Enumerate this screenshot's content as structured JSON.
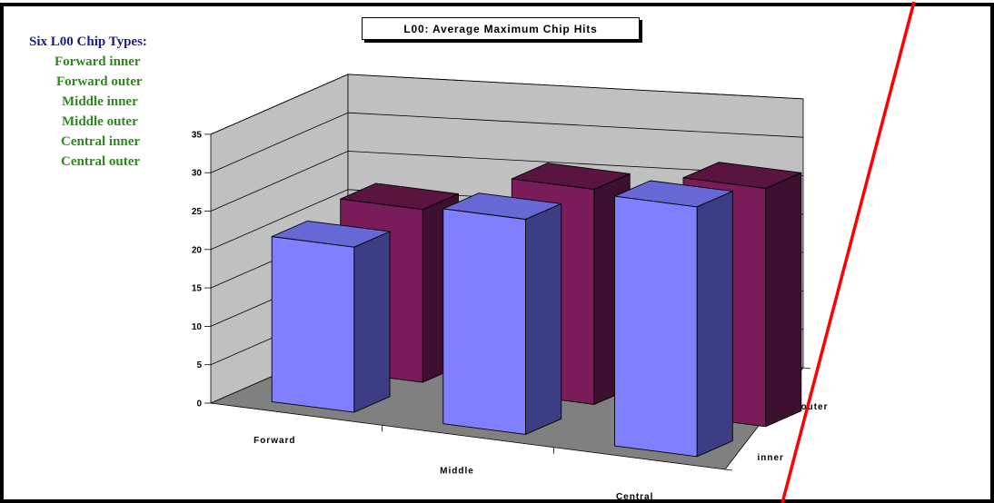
{
  "side_panel": {
    "heading": "Six L00 Chip Types:",
    "items": [
      "Forward inner",
      "Forward outer",
      "Middle inner",
      "Middle outer",
      "Central inner",
      "Central outer"
    ]
  },
  "chart_data": {
    "type": "bar",
    "subtype": "3d-column",
    "title": "L00: Average Maximum Chip Hits",
    "categories": [
      "Forward",
      "Middle",
      "Central"
    ],
    "series": [
      {
        "name": "inner",
        "values": [
          21.5,
          28,
          32.5
        ]
      },
      {
        "name": "outer",
        "values": [
          22.5,
          28,
          31
        ]
      }
    ],
    "depth_labels": [
      "inner",
      "outer"
    ],
    "ylim": [
      0,
      35
    ],
    "yticks": [
      0,
      5,
      10,
      15,
      20,
      25,
      30,
      35
    ],
    "grid": true,
    "legend": "none",
    "colors": {
      "inner": "#8080ff",
      "inner_side": "#3d3d85",
      "inner_top": "#6767d6",
      "outer": "#7a1c5a",
      "outer_side": "#3e1030",
      "outer_top": "#5a1440",
      "back_wall": "#c0c0c0",
      "side_wall": "#c0c0c0",
      "floor": "#808080",
      "marker_line": "#ff0000"
    }
  }
}
